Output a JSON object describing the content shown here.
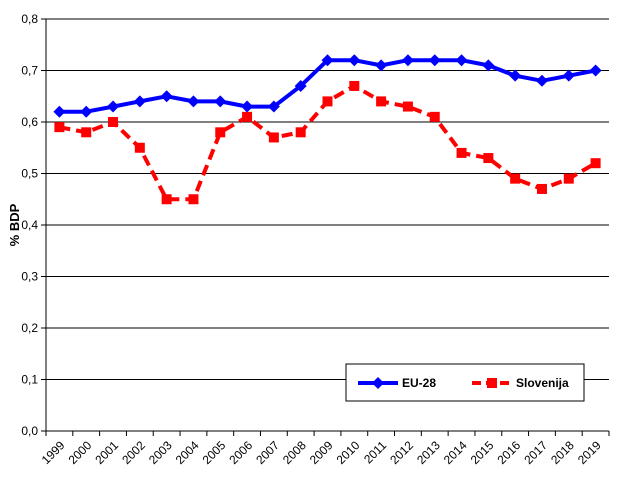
{
  "chart_data": {
    "type": "line",
    "ylabel": "% BDP",
    "xlabel": "",
    "ylim": [
      0,
      0.8
    ],
    "y_ticks": [
      "0,0",
      "0,1",
      "0,2",
      "0,3",
      "0,4",
      "0,5",
      "0,6",
      "0,7",
      "0,8"
    ],
    "grid": "horizontal",
    "legend_position": "bottom-right",
    "categories": [
      "1999",
      "2000",
      "2001",
      "2002",
      "2003",
      "2004",
      "2005",
      "2006",
      "2007",
      "2008",
      "2009",
      "2010",
      "2011",
      "2012",
      "2013",
      "2014",
      "2015",
      "2016",
      "2017",
      "2018",
      "2019"
    ],
    "series": [
      {
        "name": "EU-28",
        "color": "#0000ff",
        "style": "solid",
        "marker": "diamond",
        "values": [
          0.62,
          0.62,
          0.63,
          0.64,
          0.65,
          0.64,
          0.64,
          0.63,
          0.63,
          0.67,
          0.72,
          0.72,
          0.71,
          0.72,
          0.72,
          0.72,
          0.71,
          0.69,
          0.68,
          0.69,
          0.7
        ]
      },
      {
        "name": "Slovenija",
        "color": "#ff0000",
        "style": "dashed",
        "marker": "square",
        "values": [
          0.59,
          0.58,
          0.6,
          0.55,
          0.45,
          0.45,
          0.58,
          0.61,
          0.57,
          0.58,
          0.64,
          0.67,
          0.64,
          0.63,
          0.61,
          0.54,
          0.53,
          0.49,
          0.47,
          0.49,
          0.52
        ]
      }
    ]
  }
}
